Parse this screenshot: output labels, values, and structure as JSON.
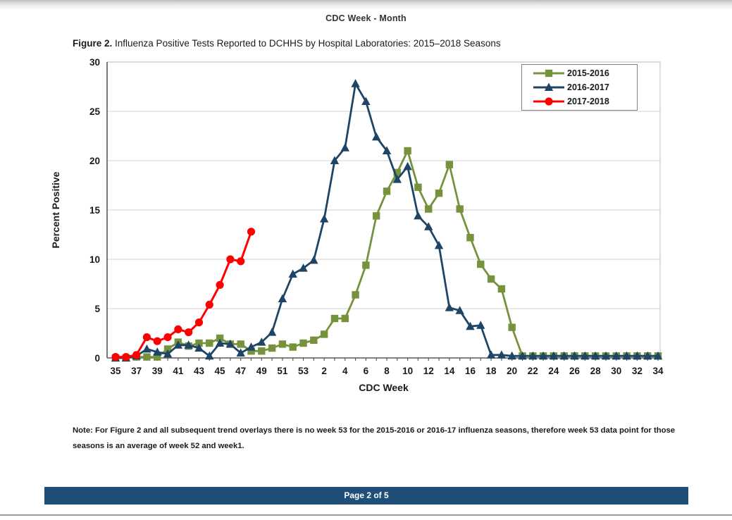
{
  "page": {
    "header": "CDC Week - Month",
    "figure_title_bold": "Figure 2.",
    "figure_title_rest": " Influenza Positive Tests Reported to DCHHS by Hospital Laboratories: 2015–2018 Seasons",
    "note_line1": "Note: For Figure 2 and all subsequent trend overlays there is no week 53 for the 2015-2016 or 2016-17 influenza seasons, therefore week 53 data point for those",
    "note_line2": "seasons is an average of week 52 and week1.",
    "footer": "Page 2 of 5"
  },
  "chart_data": {
    "type": "line",
    "title": "Figure 2. Influenza Positive Tests Reported to DCHHS by Hospital Laboratories: 2015–2018 Seasons",
    "xlabel": "CDC Week",
    "ylabel": "Percent Positive",
    "ylim": [
      0,
      30
    ],
    "yticks": [
      0,
      5,
      10,
      15,
      20,
      25,
      30
    ],
    "grid": true,
    "legend_position": "top-right",
    "label_every": 2,
    "colors": {
      "grid": "#D9D9D9",
      "plot_border": "#BFBFBF",
      "axis": "#595959",
      "text": "#1a1a1a"
    },
    "categories": [
      "35",
      "36",
      "37",
      "38",
      "39",
      "40",
      "41",
      "42",
      "43",
      "44",
      "45",
      "46",
      "47",
      "48",
      "49",
      "50",
      "51",
      "52",
      "53",
      "1",
      "2",
      "3",
      "4",
      "5",
      "6",
      "7",
      "8",
      "9",
      "10",
      "11",
      "12",
      "13",
      "14",
      "15",
      "16",
      "17",
      "18",
      "19",
      "20",
      "21",
      "22",
      "23",
      "24",
      "25",
      "26",
      "27",
      "28",
      "29",
      "30",
      "31",
      "32",
      "33",
      "34"
    ],
    "series": [
      {
        "name": "2015-2016",
        "color": "#76923C",
        "marker": "square",
        "values": [
          0,
          0,
          0.1,
          0.1,
          0.1,
          0.9,
          1.6,
          1.2,
          1.5,
          1.5,
          2.0,
          1.4,
          1.4,
          0.7,
          0.7,
          1.0,
          1.4,
          1.1,
          1.5,
          1.8,
          2.4,
          4.0,
          4.0,
          6.4,
          9.4,
          14.4,
          16.9,
          18.8,
          21.0,
          17.3,
          15.1,
          16.7,
          19.6,
          15.1,
          12.2,
          9.5,
          8.0,
          7.0,
          3.1,
          0.2,
          0.2,
          0.2,
          0.2,
          0.2,
          0.2,
          0.2,
          0.2,
          0.2,
          0.2,
          0.2,
          0.2,
          0.2,
          0.2
        ]
      },
      {
        "name": "2016-2017",
        "color": "#1F4566",
        "marker": "triangle",
        "values": [
          0,
          0,
          0.2,
          0.9,
          0.6,
          0.4,
          1.3,
          1.3,
          1.0,
          0.2,
          1.5,
          1.4,
          0.5,
          1.1,
          1.6,
          2.6,
          6.0,
          8.5,
          9.1,
          9.9,
          14.1,
          20.0,
          21.3,
          27.8,
          26.0,
          22.4,
          21.0,
          18.1,
          19.4,
          14.4,
          13.3,
          11.4,
          5.1,
          4.8,
          3.2,
          3.3,
          0.3,
          0.3,
          0.2,
          0.2,
          0.2,
          0.2,
          0.2,
          0.2,
          0.2,
          0.2,
          0.2,
          0.2,
          0.2,
          0.2,
          0.2,
          0.2,
          0.2
        ]
      },
      {
        "name": "2017-2018",
        "color": "#FF0000",
        "marker": "circle",
        "values": [
          0.1,
          0.1,
          0.3,
          2.1,
          1.7,
          2.1,
          2.9,
          2.6,
          3.6,
          5.4,
          7.4,
          10.0,
          9.8,
          12.8,
          null,
          null,
          null,
          null,
          null,
          null,
          null,
          null,
          null,
          null,
          null,
          null,
          null,
          null,
          null,
          null,
          null,
          null,
          null,
          null,
          null,
          null,
          null,
          null,
          null,
          null,
          null,
          null,
          null,
          null,
          null,
          null,
          null,
          null,
          null,
          null,
          null,
          null,
          null
        ]
      }
    ]
  }
}
